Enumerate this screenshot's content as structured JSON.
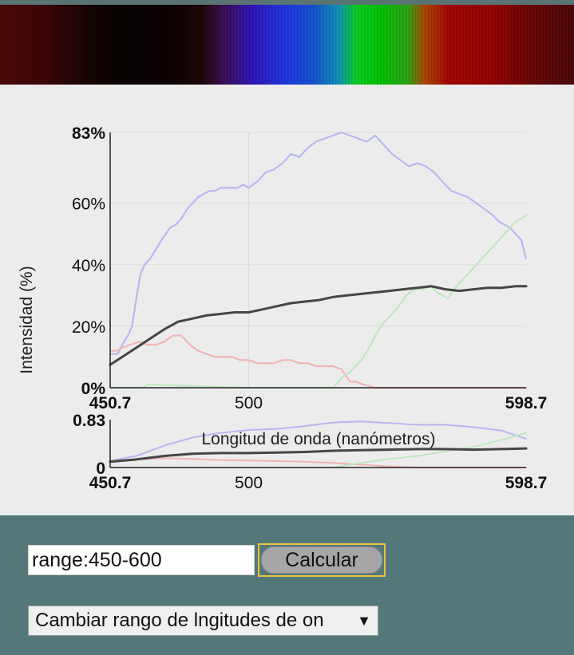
{
  "chart_data": [
    {
      "type": "line",
      "title": "",
      "xlabel": "Longitud de onda (nanómetros)",
      "ylabel": "Intensidad (%)",
      "xlim": [
        450.7,
        598.7
      ],
      "ylim": [
        0,
        83
      ],
      "x_ticks": [
        "450.7",
        "500",
        "598.7"
      ],
      "y_ticks": [
        "0%",
        "20%",
        "40%",
        "60%",
        "83%"
      ],
      "grid": true,
      "series": [
        {
          "color": "#b8b8f2",
          "width": 2.2,
          "x": [
            450.7,
            453.5,
            455,
            457,
            458.5,
            460,
            461.5,
            463,
            465,
            467,
            469,
            470.5,
            472,
            474,
            476,
            478,
            480,
            482,
            484,
            486,
            488,
            490,
            492,
            494,
            496,
            498,
            500,
            503,
            506,
            509,
            512,
            515,
            518,
            521,
            524,
            527,
            530,
            533,
            536,
            539,
            542,
            545,
            548,
            551,
            554,
            557,
            560,
            563,
            566,
            569,
            572,
            575,
            578,
            581,
            584,
            587,
            589,
            591,
            593,
            595,
            597,
            598.7
          ],
          "y": [
            11,
            11,
            14,
            17,
            20,
            29,
            37,
            40,
            42,
            45,
            48,
            50,
            52,
            53,
            55,
            58,
            60,
            62,
            63,
            64,
            64,
            65,
            65,
            65,
            65,
            66,
            65,
            67,
            70,
            71,
            73,
            76,
            75,
            78,
            80,
            81,
            82,
            83,
            82,
            81,
            80,
            82,
            79,
            76,
            74,
            72,
            73,
            72,
            70,
            67,
            64,
            63,
            62,
            60,
            58,
            56,
            54,
            53,
            52,
            50,
            48,
            42
          ]
        },
        {
          "color": "#f2b4b4",
          "width": 2.2,
          "x": [
            450.7,
            453,
            455,
            458,
            461,
            464,
            467,
            470,
            473,
            476,
            479,
            482,
            485,
            488,
            491,
            494,
            497,
            500,
            503,
            506,
            509,
            512,
            515,
            518,
            521,
            524,
            527,
            530,
            533,
            536,
            538,
            541,
            545,
            550,
            560,
            580,
            598.7
          ],
          "y": [
            12,
            12,
            13,
            14,
            15,
            14,
            14,
            15,
            17,
            17,
            14,
            12,
            11,
            10,
            10,
            10,
            9,
            9,
            8,
            8,
            8,
            9,
            9,
            8,
            8,
            7,
            7,
            7,
            6,
            2,
            2,
            1,
            0,
            0,
            0,
            0,
            0
          ]
        },
        {
          "color": "#bfe8bf",
          "width": 2.2,
          "x": [
            450.7,
            462,
            464,
            500,
            530,
            532,
            534,
            536,
            538,
            541,
            544,
            547,
            550,
            553,
            556,
            559,
            562,
            565,
            567,
            569,
            571,
            573,
            575,
            577,
            579,
            581,
            583,
            585,
            587,
            589,
            591,
            593,
            595,
            597,
            598.7
          ],
          "y": [
            0,
            0,
            1,
            0,
            0,
            2,
            4,
            5,
            7,
            10,
            15,
            20,
            23,
            26,
            30,
            32,
            32,
            33,
            31,
            30,
            29,
            32,
            34,
            36,
            38,
            40,
            42,
            44,
            46,
            48,
            50,
            52,
            54,
            55,
            56
          ]
        },
        {
          "color": "#454545",
          "width": 3,
          "x": [
            450.7,
            455,
            460,
            465,
            470,
            475,
            480,
            485,
            490,
            495,
            500,
            505,
            510,
            515,
            520,
            525,
            530,
            535,
            540,
            545,
            550,
            555,
            560,
            565,
            570,
            575,
            580,
            585,
            590,
            595,
            598.7
          ],
          "y": [
            7.5,
            10,
            13,
            16,
            19,
            21.5,
            22.5,
            23.5,
            24,
            24.5,
            24.5,
            25.5,
            26.5,
            27.5,
            28,
            28.5,
            29.5,
            30,
            30.5,
            31,
            31.5,
            32,
            32.5,
            33,
            32,
            31.5,
            32,
            32.5,
            32.5,
            33,
            33
          ]
        }
      ]
    },
    {
      "type": "line",
      "title": "",
      "xlabel": "",
      "ylabel": "",
      "xlim": [
        450.7,
        598.7
      ],
      "ylim": [
        0,
        0.83
      ],
      "x_ticks": [
        "450.7",
        "500",
        "598.7"
      ],
      "y_ticks": [
        "0",
        "0.83"
      ],
      "grid": false,
      "series": [
        {
          "color": "#b8b8f2",
          "width": 2,
          "x": [
            450.7,
            460,
            470,
            480,
            490,
            500,
            510,
            520,
            530,
            540,
            550,
            560,
            570,
            580,
            590,
            598.7
          ],
          "y": [
            0.12,
            0.2,
            0.38,
            0.52,
            0.6,
            0.65,
            0.67,
            0.72,
            0.78,
            0.8,
            0.77,
            0.74,
            0.74,
            0.7,
            0.64,
            0.5
          ]
        },
        {
          "color": "#f2b4b4",
          "width": 2,
          "x": [
            450.7,
            460,
            470,
            480,
            490,
            500,
            510,
            520,
            530,
            540,
            550,
            560,
            598.7
          ],
          "y": [
            0.12,
            0.14,
            0.16,
            0.15,
            0.13,
            0.12,
            0.11,
            0.1,
            0.08,
            0.05,
            0.02,
            0,
            0
          ]
        },
        {
          "color": "#bfe8bf",
          "width": 2,
          "x": [
            450.7,
            530,
            540,
            550,
            560,
            570,
            580,
            590,
            598.7
          ],
          "y": [
            0,
            0,
            0.08,
            0.15,
            0.2,
            0.28,
            0.36,
            0.48,
            0.6
          ]
        },
        {
          "color": "#454545",
          "width": 3,
          "x": [
            450.7,
            460,
            470,
            480,
            490,
            500,
            510,
            520,
            530,
            540,
            550,
            560,
            570,
            580,
            590,
            598.7
          ],
          "y": [
            0.1,
            0.14,
            0.2,
            0.24,
            0.25,
            0.25,
            0.26,
            0.27,
            0.29,
            0.3,
            0.31,
            0.32,
            0.32,
            0.31,
            0.32,
            0.33
          ]
        }
      ]
    }
  ],
  "controls": {
    "range_input_value": "range:450-600",
    "calculate_label": "Calcular",
    "range_select_label": "Cambiar rango de lngitudes de on",
    "range_select_arrow": "▼"
  }
}
